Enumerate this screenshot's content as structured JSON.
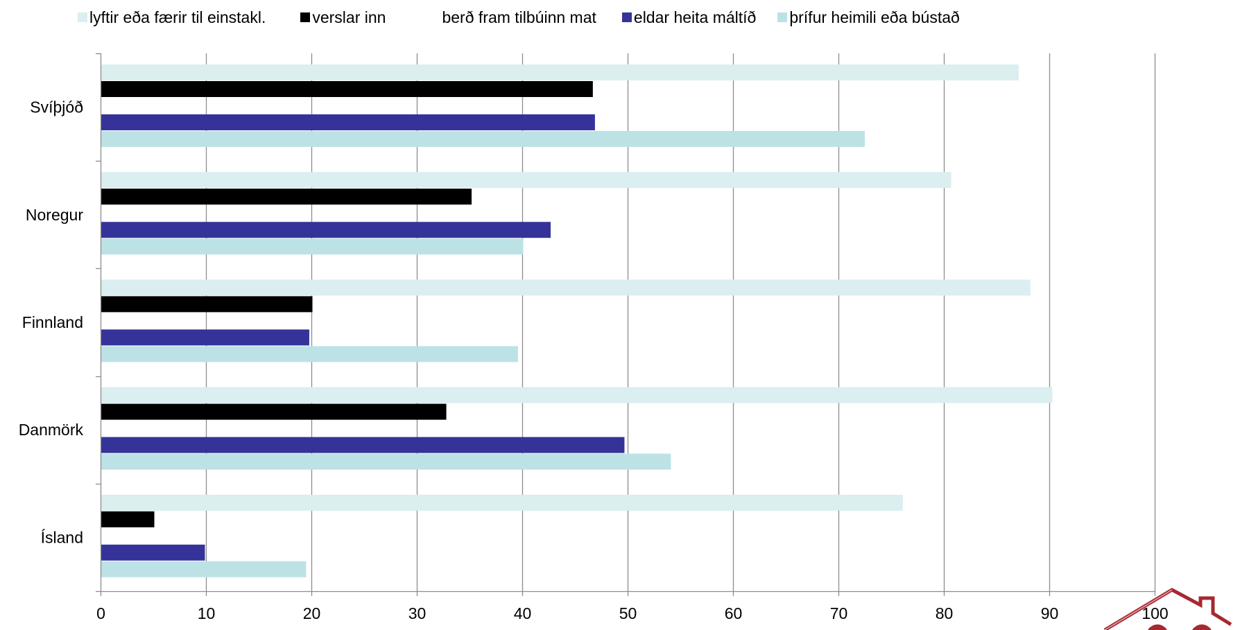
{
  "chart_data": {
    "type": "bar",
    "orientation": "horizontal",
    "categories": [
      "Svíþjóð",
      "Noregur",
      "Finnland",
      "Danmörk",
      "Ísland"
    ],
    "series": [
      {
        "name": "lyftir eða færir til einstakl.",
        "color": "#dbeef0",
        "values": [
          87.1,
          80.7,
          88.2,
          90.3,
          76.1
        ]
      },
      {
        "name": "verslar inn",
        "color": "#000000",
        "values": [
          46.7,
          35.2,
          20.1,
          32.8,
          5.1
        ]
      },
      {
        "name": "berð fram tilbúinn mat",
        "color": "#ffffff",
        "values": [
          0,
          0,
          0,
          0,
          0
        ]
      },
      {
        "name": "eldar heita máltíð",
        "color": "#353399",
        "values": [
          46.9,
          42.7,
          19.8,
          49.7,
          9.9
        ]
      },
      {
        "name": "þrífur heimili eða bústað",
        "color": "#bce2e6",
        "values": [
          72.5,
          40.1,
          39.6,
          54.1,
          19.5
        ]
      }
    ],
    "xlim": [
      0,
      100
    ],
    "x_ticks": [
      "0",
      "10",
      "20",
      "30",
      "40",
      "50",
      "60",
      "70",
      "80",
      "90",
      "100"
    ],
    "grid": true,
    "legend_position": "top",
    "title": "",
    "xlabel": "",
    "ylabel": ""
  },
  "logo": {
    "name": "house-logo",
    "color": "#a7282f"
  }
}
